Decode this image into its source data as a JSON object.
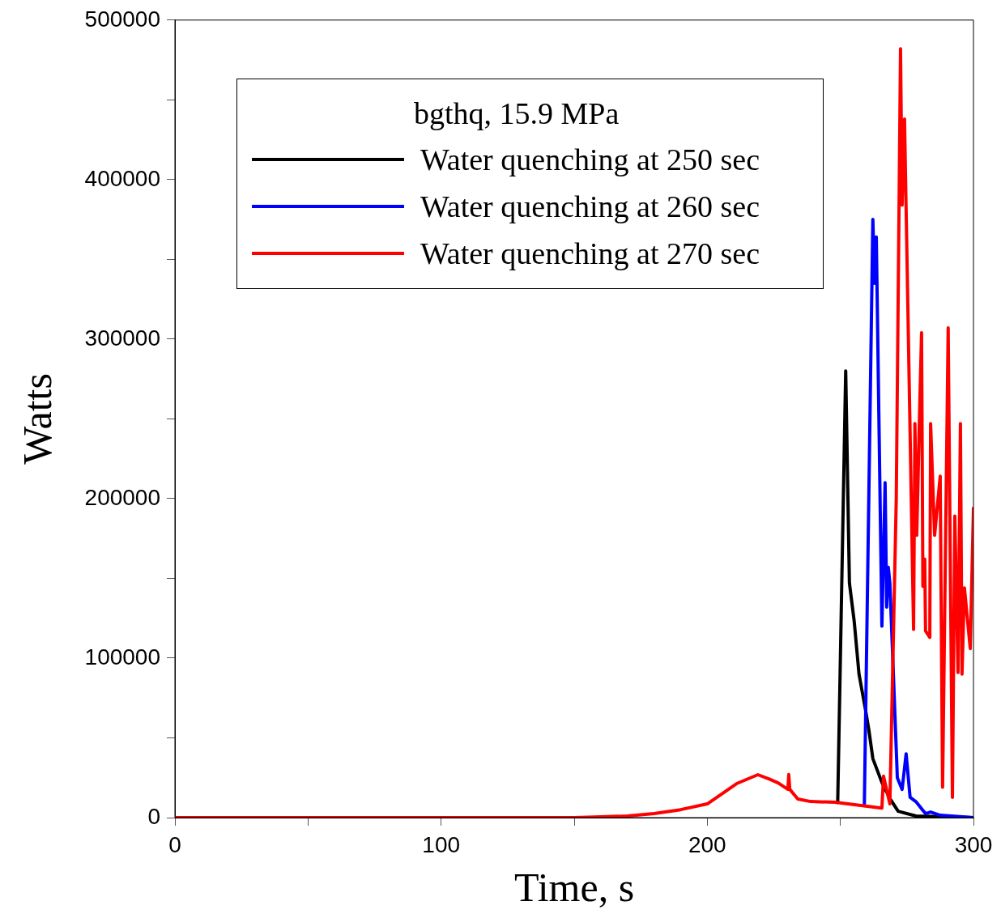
{
  "chart_data": {
    "type": "line",
    "xlabel": "Time, s",
    "ylabel": "Watts",
    "legend_title": "bgthq, 15.9 MPa",
    "legend": "top left",
    "grid": false,
    "line_style": "solid",
    "marker": "none",
    "xlim": [
      0,
      300
    ],
    "xticks": [
      0,
      {
        "value": 50,
        "label": null
      },
      100,
      {
        "value": 150,
        "label": null
      },
      200,
      {
        "value": 250,
        "label": null
      },
      300
    ],
    "ylim": [
      0,
      500000
    ],
    "yticks": [
      0,
      {
        "value": 50000,
        "label": null
      },
      100000,
      {
        "value": 150000,
        "label": null
      },
      200000,
      {
        "value": 250000,
        "label": null
      },
      300000,
      {
        "value": 350000,
        "label": null
      },
      400000,
      {
        "value": 450000,
        "label": null
      },
      500000
    ],
    "series": [
      {
        "name": "Water quenching at 250 sec",
        "color": "#000000",
        "x": [
          248,
          249,
          252,
          253.4,
          255.2,
          257,
          259.5,
          260.7,
          262.2,
          265.6,
          268.6,
          271.7,
          278.4,
          300
        ],
        "values": [
          9600,
          9500,
          280000,
          147000,
          123000,
          90000,
          67000,
          55000,
          37000,
          22000,
          12000,
          4000,
          1000,
          0
        ]
      },
      {
        "name": "Water quenching at 260 sec",
        "color": "#0000ff",
        "x": [
          259,
          262.2,
          262.9,
          263.5,
          265.6,
          266.8,
          267.4,
          268,
          268.6,
          271.4,
          273.2,
          274.7,
          276.2,
          278.4,
          280.8,
          282,
          283.9,
          287.5,
          300
        ],
        "values": [
          7500,
          375000,
          335000,
          364000,
          120000,
          210000,
          132000,
          157000,
          147000,
          25000,
          17700,
          40000,
          12700,
          10000,
          5000,
          2500,
          3500,
          1500,
          0
        ]
      },
      {
        "name": "Water quenching at 270 sec",
        "color": "#ff0000",
        "x": [
          0,
          150,
          160,
          170,
          180,
          190,
          200,
          211,
          219,
          223.5,
          226.6,
          230.3,
          230.6,
          231,
          234,
          238.8,
          248,
          265.6,
          266.2,
          268.6,
          271,
          272.6,
          273.2,
          274.1,
          277.5,
          278,
          278.7,
          279.6,
          280.5,
          281,
          281.7,
          282,
          283.6,
          283.9,
          285.4,
          287.5,
          288.4,
          290.5,
          292.1,
          293,
          294.2,
          295.1,
          295.7,
          296.6,
          298.8,
          300
        ],
        "values": [
          0,
          0,
          500,
          1000,
          2500,
          5000,
          8600,
          21300,
          26900,
          24000,
          21800,
          17700,
          27000,
          17700,
          11700,
          10100,
          9600,
          6000,
          26000,
          8600,
          200000,
          482000,
          384000,
          438000,
          118000,
          247000,
          177000,
          243000,
          304000,
          145000,
          162000,
          117000,
          113000,
          247000,
          177000,
          214000,
          19000,
          307000,
          12700,
          189000,
          91000,
          247000,
          90000,
          144000,
          106000,
          194000
        ]
      }
    ]
  }
}
